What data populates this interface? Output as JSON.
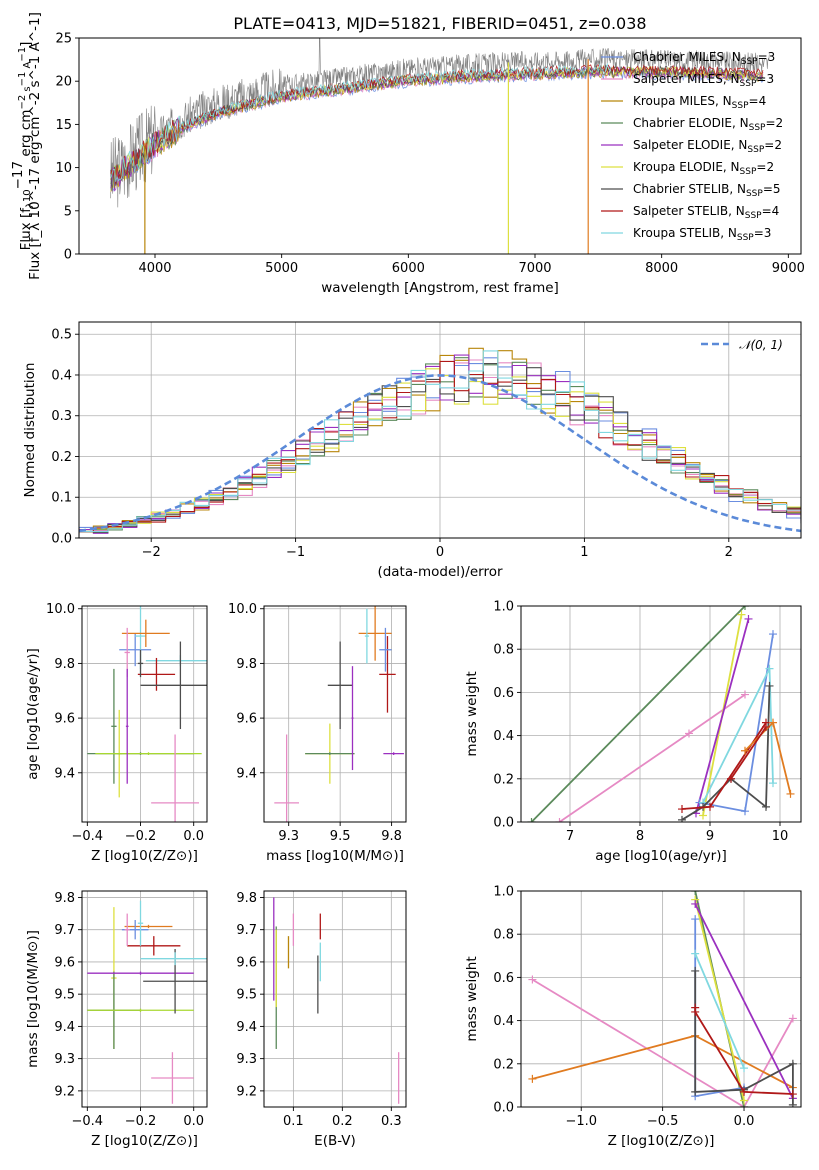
{
  "figure": {
    "title": "PLATE=0413, MJD=51821, FIBERID=0451, z=0.038"
  },
  "colors": {
    "observed": "#7f7f7f",
    "Chabrier MILES": "#6b8ee0",
    "Salpeter MILES": "#e68ac4",
    "Kroupa MILES": "#b8860b",
    "Chabrier ELODIE": "#5b8a5b",
    "Salpeter ELODIE": "#9b30c0",
    "Kroupa ELODIE": "#dde040",
    "Chabrier STELIB": "#4d4d4d",
    "Salpeter STELIB": "#b01818",
    "Kroupa STELIB": "#80d8e0",
    "gaussian": "#5b8ad8",
    "orange": "#e07b20",
    "lime": "#a8d830"
  },
  "chart_data": [
    {
      "id": "spectrum",
      "type": "line",
      "title": "PLATE=0413, MJD=51821, FIBERID=0451, z=0.038",
      "xlabel": "wavelength [Angstrom, rest frame]",
      "ylabel": "Flux [f_λ 10^-17 erg cm^-2 s^-1 A^-1]",
      "xlim": [
        3400,
        9100
      ],
      "ylim": [
        0,
        25
      ],
      "xticks": [
        4000,
        5000,
        6000,
        7000,
        8000,
        9000
      ],
      "yticks": [
        0,
        5,
        10,
        15,
        20,
        25
      ],
      "grid": false,
      "legend_position": "right",
      "continuum": {
        "x": [
          3650,
          3800,
          4000,
          4200,
          4500,
          5000,
          5500,
          6000,
          6500,
          7000,
          7500,
          8000,
          8500,
          8850
        ],
        "y": [
          9,
          11,
          13.5,
          15.5,
          17.5,
          19.5,
          20.5,
          21.5,
          22,
          22.3,
          22.6,
          22.5,
          22.3,
          22
        ]
      },
      "series": [
        {
          "name": "Chabrier MILES",
          "N_SSP": 3
        },
        {
          "name": "Salpeter MILES",
          "N_SSP": 3
        },
        {
          "name": "Kroupa MILES",
          "N_SSP": 4
        },
        {
          "name": "Chabrier ELODIE",
          "N_SSP": 2
        },
        {
          "name": "Salpeter ELODIE",
          "N_SSP": 2
        },
        {
          "name": "Kroupa ELODIE",
          "N_SSP": 2
        },
        {
          "name": "Chabrier STELIB",
          "N_SSP": 5
        },
        {
          "name": "Salpeter STELIB",
          "N_SSP": 4
        },
        {
          "name": "Kroupa STELIB",
          "N_SSP": 3
        }
      ]
    },
    {
      "id": "residual_histogram",
      "type": "bar",
      "xlabel": "(data-model)/error",
      "ylabel": "Normed distribution",
      "xlim": [
        -2.5,
        2.5
      ],
      "ylim": [
        0,
        0.53
      ],
      "xticks": [
        -2,
        -1,
        0,
        1,
        2
      ],
      "yticks": [
        0.0,
        0.1,
        0.2,
        0.3,
        0.4,
        0.5
      ],
      "grid": true,
      "legend_position": "top-right",
      "legend": "𝒩(0, 1)",
      "bin_edges": [
        -2.6,
        -2.5,
        -2.4,
        -2.3,
        -2.2,
        -2.1,
        -2.0,
        -1.9,
        -1.8,
        -1.7,
        -1.6,
        -1.5,
        -1.4,
        -1.3,
        -1.2,
        -1.1,
        -1.0,
        -0.9,
        -0.8,
        -0.7,
        -0.6,
        -0.5,
        -0.4,
        -0.3,
        -0.2,
        -0.1,
        0.0,
        0.1,
        0.2,
        0.3,
        0.4,
        0.5,
        0.6,
        0.7,
        0.8,
        0.9,
        1.0,
        1.1,
        1.2,
        1.3,
        1.4,
        1.5,
        1.6,
        1.7,
        1.8,
        1.9,
        2.0,
        2.1,
        2.2,
        2.3,
        2.4,
        2.5,
        2.6
      ],
      "density": [
        0.015,
        0.018,
        0.022,
        0.028,
        0.034,
        0.041,
        0.05,
        0.06,
        0.071,
        0.083,
        0.097,
        0.112,
        0.129,
        0.147,
        0.166,
        0.186,
        0.207,
        0.229,
        0.251,
        0.273,
        0.294,
        0.314,
        0.333,
        0.35,
        0.365,
        0.378,
        0.389,
        0.396,
        0.4,
        0.4,
        0.396,
        0.389,
        0.378,
        0.365,
        0.35,
        0.333,
        0.314,
        0.294,
        0.273,
        0.251,
        0.229,
        0.207,
        0.186,
        0.166,
        0.147,
        0.129,
        0.112,
        0.097,
        0.083,
        0.071,
        0.06,
        0.05
      ],
      "series": [
        {
          "name": "Chabrier MILES",
          "seed": 1
        },
        {
          "name": "Salpeter MILES",
          "seed": 2
        },
        {
          "name": "Kroupa MILES",
          "seed": 3
        },
        {
          "name": "Chabrier ELODIE",
          "seed": 4
        },
        {
          "name": "Salpeter ELODIE",
          "seed": 5
        },
        {
          "name": "Kroupa ELODIE",
          "seed": 6
        },
        {
          "name": "Chabrier STELIB",
          "seed": 7
        },
        {
          "name": "Salpeter STELIB",
          "seed": 8
        },
        {
          "name": "Kroupa STELIB",
          "seed": 9
        }
      ],
      "gaussian": {
        "mean": 0,
        "sigma": 1
      }
    },
    {
      "id": "age_vs_Z",
      "type": "scatter",
      "xlabel": "Z [log10(Z/Z⊙)]",
      "ylabel": "age  [log10(age/yr)]",
      "xlim": [
        -0.42,
        0.05
      ],
      "ylim": [
        9.22,
        10.01
      ],
      "xticks": [
        -0.4,
        -0.2,
        0.0
      ],
      "yticks": [
        9.4,
        9.6,
        9.8,
        10.0
      ],
      "grid": true,
      "points": [
        {
          "series": "Chabrier MILES",
          "x": -0.22,
          "y": 9.85,
          "xerr": 0.06,
          "yerr": 0.06
        },
        {
          "series": "Kroupa STELIB",
          "x": -0.2,
          "y": 9.9,
          "xerr": 0.02,
          "yerr": 0.12
        },
        {
          "series": "orange",
          "x": -0.18,
          "y": 9.91,
          "xerr": 0.09,
          "yerr": 0.05
        },
        {
          "series": "Salpeter MILES",
          "x": -0.25,
          "y": 9.84,
          "xerr": 0.01,
          "yerr": 0.09
        },
        {
          "series": "Kroupa STELIB",
          "x": -0.05,
          "y": 9.81,
          "xerr": 0.13,
          "yerr": 0.02
        },
        {
          "series": "Salpeter STELIB",
          "x": -0.14,
          "y": 9.76,
          "xerr": 0.07,
          "yerr": 0.06
        },
        {
          "series": "Chabrier STELIB",
          "x": -0.05,
          "y": 9.72,
          "xerr": 0.15,
          "yerr": 0.16
        },
        {
          "series": "Chabrier STELIB",
          "x": -0.2,
          "y": 9.8,
          "xerr": 0.01,
          "yerr": 0.05
        },
        {
          "series": "Chabrier ELODIE",
          "x": -0.3,
          "y": 9.57,
          "xerr": 0.01,
          "yerr": 0.21
        },
        {
          "series": "Kroupa ELODIE",
          "x": -0.28,
          "y": 9.47,
          "xerr": 0.01,
          "yerr": 0.16
        },
        {
          "series": "Chabrier ELODIE",
          "x": -0.2,
          "y": 9.47,
          "xerr": 0.2,
          "yerr": 0.005
        },
        {
          "series": "lime",
          "x": -0.17,
          "y": 9.47,
          "xerr": 0.2,
          "yerr": 0.005
        },
        {
          "series": "Salpeter ELODIE",
          "x": -0.25,
          "y": 9.57,
          "xerr": 0.005,
          "yerr": 0.21
        },
        {
          "series": "Salpeter MILES",
          "x": -0.07,
          "y": 9.29,
          "xerr": 0.09,
          "yerr": 0.25
        }
      ]
    },
    {
      "id": "age_vs_mass",
      "type": "scatter",
      "xlabel": "mass [log10(M/M⊙)]",
      "ylabel": "",
      "xlim": [
        9.13,
        9.82
      ],
      "ylim": [
        9.22,
        10.01
      ],
      "xticks": [
        9.25,
        9.5,
        9.75
      ],
      "yticks": [
        9.4,
        9.6,
        9.8,
        10.0
      ],
      "grid": true,
      "points": [
        {
          "series": "Salpeter MILES",
          "x": 9.24,
          "y": 9.29,
          "xerr": 0.06,
          "yerr": 0.25
        },
        {
          "series": "Kroupa ELODIE",
          "x": 9.45,
          "y": 9.47,
          "xerr": 0.12,
          "yerr": 0.11
        },
        {
          "series": "Chabrier ELODIE",
          "x": 9.45,
          "y": 9.47,
          "xerr": 0.12,
          "yerr": 0.005
        },
        {
          "series": "Chabrier STELIB",
          "x": 9.5,
          "y": 9.72,
          "xerr": 0.06,
          "yerr": 0.16
        },
        {
          "series": "Salpeter ELODIE",
          "x": 9.56,
          "y": 9.6,
          "xerr": 0.005,
          "yerr": 0.19
        },
        {
          "series": "Salpeter ELODIE",
          "x": 9.76,
          "y": 9.47,
          "xerr": 0.05,
          "yerr": 0.005
        },
        {
          "series": "orange",
          "x": 9.67,
          "y": 9.91,
          "xerr": 0.08,
          "yerr": 0.1
        },
        {
          "series": "Salpeter STELIB",
          "x": 9.73,
          "y": 9.76,
          "xerr": 0.04,
          "yerr": 0.14
        },
        {
          "series": "Chabrier MILES",
          "x": 9.72,
          "y": 9.85,
          "xerr": 0.03,
          "yerr": 0.08
        },
        {
          "series": "Kroupa STELIB",
          "x": 9.63,
          "y": 9.9,
          "xerr": 0.01,
          "yerr": 0.1
        }
      ]
    },
    {
      "id": "mass_weight_vs_age",
      "type": "line",
      "xlabel": "age  [log10(age/yr)]",
      "ylabel": "mass weight",
      "xlim": [
        6.3,
        10.3
      ],
      "ylim": [
        0,
        1
      ],
      "xticks": [
        7,
        8,
        9,
        10
      ],
      "yticks": [
        0.0,
        0.2,
        0.4,
        0.6,
        0.8,
        1.0
      ],
      "grid": true,
      "series": [
        {
          "name": "Chabrier ELODIE",
          "x": [
            6.45,
            9.5
          ],
          "y": [
            0.0,
            1.0
          ]
        },
        {
          "name": "Salpeter MILES",
          "x": [
            6.85,
            8.7,
            9.5
          ],
          "y": [
            0.0,
            0.41,
            0.59
          ]
        },
        {
          "name": "Kroupa ELODIE",
          "x": [
            8.9,
            9.45
          ],
          "y": [
            0.03,
            0.96
          ]
        },
        {
          "name": "Salpeter ELODIE",
          "x": [
            8.8,
            9.55
          ],
          "y": [
            0.04,
            0.94
          ]
        },
        {
          "name": "Chabrier MILES",
          "x": [
            8.85,
            9.5,
            9.9
          ],
          "y": [
            0.09,
            0.05,
            0.87
          ]
        },
        {
          "name": "Kroupa STELIB",
          "x": [
            8.9,
            9.85,
            9.9
          ],
          "y": [
            0.09,
            0.71,
            0.18
          ]
        },
        {
          "name": "Chabrier STELIB",
          "x": [
            8.6,
            8.9,
            9.3,
            9.8,
            9.85
          ],
          "y": [
            0.01,
            0.07,
            0.2,
            0.07,
            0.63
          ]
        },
        {
          "name": "Salpeter STELIB",
          "x": [
            8.6,
            9.0,
            9.8
          ],
          "y": [
            0.06,
            0.07,
            0.46
          ]
        },
        {
          "name": "orange",
          "x": [
            9.5,
            9.9,
            10.15
          ],
          "y": [
            0.33,
            0.46,
            0.13
          ]
        },
        {
          "name": "Salpeter STELIB",
          "x": [
            9.3,
            9.8
          ],
          "y": [
            0.2,
            0.44
          ]
        }
      ]
    },
    {
      "id": "mass_vs_Z",
      "type": "scatter",
      "xlabel": "Z [log10(Z/Z⊙)]",
      "ylabel": "mass [log10(M/M⊙)]",
      "xlim": [
        -0.42,
        0.05
      ],
      "ylim": [
        9.15,
        9.82
      ],
      "xticks": [
        -0.4,
        -0.2,
        0.0
      ],
      "yticks": [
        9.2,
        9.3,
        9.4,
        9.5,
        9.6,
        9.7,
        9.8
      ],
      "grid": true,
      "points": [
        {
          "series": "Kroupa ELODIE",
          "x": -0.3,
          "y": 9.55,
          "xerr": 0.01,
          "yerr": 0.22
        },
        {
          "series": "Chabrier ELODIE",
          "x": -0.3,
          "y": 9.45,
          "xerr": 0.1,
          "yerr": 0.12
        },
        {
          "series": "lime",
          "x": -0.2,
          "y": 9.45,
          "xerr": 0.2,
          "yerr": 0.005
        },
        {
          "series": "Salpeter ELODIE",
          "x": -0.2,
          "y": 9.565,
          "xerr": 0.2,
          "yerr": 0.005
        },
        {
          "series": "Chabrier STELIB",
          "x": -0.07,
          "y": 9.54,
          "xerr": 0.12,
          "yerr": 0.1
        },
        {
          "series": "Kroupa STELIB",
          "x": -0.07,
          "y": 9.61,
          "xerr": 0.13,
          "yerr": 0.02
        },
        {
          "series": "Salpeter STELIB",
          "x": -0.15,
          "y": 9.65,
          "xerr": 0.1,
          "yerr": 0.03
        },
        {
          "series": "orange",
          "x": -0.17,
          "y": 9.71,
          "xerr": 0.09,
          "yerr": 0.005
        },
        {
          "series": "Chabrier MILES",
          "x": -0.22,
          "y": 9.7,
          "xerr": 0.05,
          "yerr": 0.03
        },
        {
          "series": "Salpeter MILES",
          "x": -0.25,
          "y": 9.7,
          "xerr": 0.01,
          "yerr": 0.05
        },
        {
          "series": "Kroupa STELIB",
          "x": -0.2,
          "y": 9.72,
          "xerr": 0.01,
          "yerr": 0.07
        },
        {
          "series": "Salpeter MILES",
          "x": -0.08,
          "y": 9.24,
          "xerr": 0.08,
          "yerr": 0.08
        }
      ]
    },
    {
      "id": "mass_vs_ebv",
      "type": "scatter",
      "xlabel": "E(B-V)",
      "ylabel": "",
      "xlim": [
        0.04,
        0.33
      ],
      "ylim": [
        9.15,
        9.82
      ],
      "xticks": [
        0.1,
        0.2,
        0.3
      ],
      "yticks": [
        9.2,
        9.3,
        9.4,
        9.5,
        9.6,
        9.7,
        9.8
      ],
      "grid": true,
      "points": [
        {
          "series": "Salpeter ELODIE",
          "x": 0.06,
          "y": 9.64,
          "yerr": 0.16
        },
        {
          "series": "Chabrier ELODIE",
          "x": 0.065,
          "y": 9.52,
          "yerr": 0.19
        },
        {
          "series": "Kroupa ELODIE",
          "x": 0.065,
          "y": 9.58,
          "yerr": 0.12
        },
        {
          "series": "Kroupa MILES",
          "x": 0.09,
          "y": 9.63,
          "yerr": 0.05
        },
        {
          "series": "Salpeter MILES",
          "x": 0.1,
          "y": 9.7,
          "yerr": 0.05
        },
        {
          "series": "Chabrier STELIB",
          "x": 0.15,
          "y": 9.53,
          "yerr": 0.09
        },
        {
          "series": "Kroupa STELIB",
          "x": 0.155,
          "y": 9.6,
          "yerr": 0.06
        },
        {
          "series": "Salpeter STELIB",
          "x": 0.155,
          "y": 9.71,
          "yerr": 0.04
        },
        {
          "series": "Salpeter MILES",
          "x": 0.315,
          "y": 9.24,
          "yerr": 0.08
        }
      ]
    },
    {
      "id": "mass_weight_vs_Z",
      "type": "line",
      "xlabel": "Z [log10(Z/Z⊙)]",
      "ylabel": "mass weight",
      "xlim": [
        -1.37,
        0.35
      ],
      "ylim": [
        0,
        1
      ],
      "xticks": [
        -1.0,
        -0.5,
        0.0
      ],
      "yticks": [
        0.0,
        0.2,
        0.4,
        0.6,
        0.8,
        1.0
      ],
      "grid": true,
      "series": [
        {
          "name": "Salpeter MILES",
          "x": [
            -1.3,
            0.0,
            0.3
          ],
          "y": [
            0.59,
            0.0,
            0.41
          ]
        },
        {
          "name": "orange",
          "x": [
            -1.3,
            -0.3,
            0.3
          ],
          "y": [
            0.13,
            0.33,
            0.09
          ]
        },
        {
          "name": "Chabrier ELODIE",
          "x": [
            -0.3,
            0.0
          ],
          "y": [
            1.0,
            0.0
          ]
        },
        {
          "name": "Kroupa ELODIE",
          "x": [
            -0.3,
            0.0
          ],
          "y": [
            0.96,
            0.03
          ]
        },
        {
          "name": "Salpeter ELODIE",
          "x": [
            -0.3,
            0.3
          ],
          "y": [
            0.94,
            0.04
          ]
        },
        {
          "name": "Chabrier MILES",
          "x": [
            -0.3,
            -0.3,
            0.0
          ],
          "y": [
            0.87,
            0.05,
            0.09
          ]
        },
        {
          "name": "Kroupa STELIB",
          "x": [
            -0.3,
            0.0
          ],
          "y": [
            0.71,
            0.18
          ]
        },
        {
          "name": "Chabrier STELIB",
          "x": [
            -0.3,
            -0.3,
            0.0,
            0.3,
            0.3
          ],
          "y": [
            0.63,
            0.07,
            0.08,
            0.2,
            0.01
          ]
        },
        {
          "name": "Salpeter STELIB",
          "x": [
            -0.3,
            -0.3,
            0.0,
            0.3
          ],
          "y": [
            0.46,
            0.44,
            0.07,
            0.06
          ]
        }
      ]
    }
  ]
}
